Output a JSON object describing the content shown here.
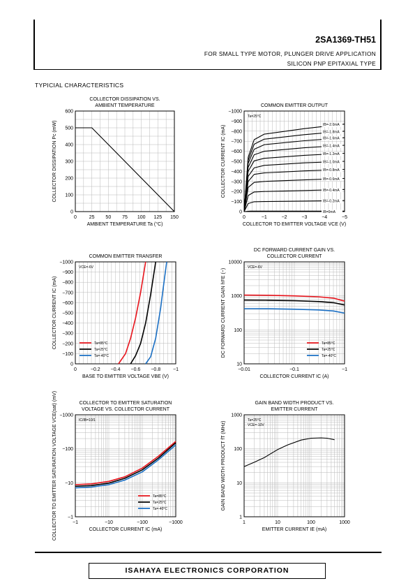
{
  "header": {
    "part_number": "2SA1369-TH51",
    "application": "FOR SMALL TYPE MOTOR, PLUNGER DRIVE APPLICATION",
    "type": "SILICON PNP EPITAXIAL TYPE"
  },
  "section_title": "TYPICIAL   CHARACTERISTICS",
  "footer": {
    "company": "ISAHAYA ELECTRONICS CORPORATION"
  },
  "chart_data": [
    {
      "type": "line",
      "title": [
        "COLLECTOR DISSIPATION VS.",
        "AMBIENT TEMPERATURE"
      ],
      "xlabel": "AMBIENT TEMPERATURE Ta (°C)",
      "ylabel": "COLLECTOR DISSIPATION Pc (mW)",
      "xlim": [
        0,
        150
      ],
      "ylim": [
        0,
        600
      ],
      "xticks": [
        0,
        25,
        50,
        75,
        100,
        125,
        150
      ],
      "yticks": [
        0,
        100,
        200,
        300,
        400,
        500,
        600
      ],
      "grid": true,
      "series": [
        {
          "color": "#000000",
          "x": [
            0,
            25,
            150
          ],
          "y": [
            500,
            500,
            0
          ]
        }
      ]
    },
    {
      "type": "line",
      "title": [
        "COMMON EMITTER OUTPUT"
      ],
      "xlabel": "COLLECTOR TO EMITTER VOLTAGE VCE (V)",
      "ylabel": "COLLECTOR CURRENT IC (mA)",
      "xlim": [
        0,
        -5
      ],
      "ylim": [
        0,
        -1000
      ],
      "xticks": [
        0,
        -1,
        -2,
        -3,
        -4,
        -5
      ],
      "yticks": [
        0,
        -100,
        -200,
        -300,
        -400,
        -500,
        -600,
        -700,
        -800,
        -900,
        -1000
      ],
      "grid": true,
      "annotations": [
        "Ta=25°C"
      ],
      "series": [
        {
          "name": "IB=0mA",
          "color": "#000000",
          "x": [
            0,
            -0.3,
            -1,
            -5
          ],
          "y": [
            0,
            -5,
            -5,
            -5
          ]
        },
        {
          "name": "IB=-0.2mA",
          "color": "#000000",
          "x": [
            0,
            -0.2,
            -0.5,
            -1,
            -3,
            -5
          ],
          "y": [
            0,
            -80,
            -98,
            -100,
            -105,
            -110
          ]
        },
        {
          "name": "IB=-0.4mA",
          "color": "#000000",
          "x": [
            0,
            -0.2,
            -0.5,
            -1,
            -3,
            -5
          ],
          "y": [
            0,
            -160,
            -195,
            -200,
            -210,
            -220
          ]
        },
        {
          "name": "IB=-0.6mA",
          "color": "#000000",
          "x": [
            0,
            -0.2,
            -0.5,
            -1,
            -3,
            -5
          ],
          "y": [
            0,
            -240,
            -290,
            -300,
            -315,
            -330
          ]
        },
        {
          "name": "IB=-0.8mA",
          "color": "#000000",
          "x": [
            0,
            -0.2,
            -0.5,
            -1,
            -3,
            -5
          ],
          "y": [
            0,
            -300,
            -370,
            -385,
            -405,
            -420
          ]
        },
        {
          "name": "IB=-1.0mA",
          "color": "#000000",
          "x": [
            0,
            -0.2,
            -0.5,
            -1,
            -3,
            -5
          ],
          "y": [
            0,
            -350,
            -435,
            -460,
            -485,
            -500
          ]
        },
        {
          "name": "IB=-1.2mA",
          "color": "#000000",
          "x": [
            0,
            -0.2,
            -0.5,
            -1,
            -3,
            -5
          ],
          "y": [
            0,
            -400,
            -505,
            -530,
            -560,
            -580
          ]
        },
        {
          "name": "IB=-1.4mA",
          "color": "#000000",
          "x": [
            0,
            -0.2,
            -0.5,
            -1,
            -3,
            -5
          ],
          "y": [
            0,
            -440,
            -565,
            -600,
            -635,
            -660
          ]
        },
        {
          "name": "IB=-1.6mA",
          "color": "#000000",
          "x": [
            0,
            -0.2,
            -0.5,
            -1,
            -3,
            -5
          ],
          "y": [
            0,
            -480,
            -620,
            -665,
            -705,
            -735
          ]
        },
        {
          "name": "IB=-1.8mA",
          "color": "#000000",
          "x": [
            0,
            -0.2,
            -0.5,
            -1,
            -3,
            -5
          ],
          "y": [
            0,
            -510,
            -670,
            -720,
            -765,
            -800
          ]
        },
        {
          "name": "IB=-2.0mA",
          "color": "#000000",
          "x": [
            0,
            -0.2,
            -0.5,
            -1,
            -3,
            -5
          ],
          "y": [
            0,
            -540,
            -715,
            -770,
            -825,
            -870
          ]
        }
      ]
    },
    {
      "type": "line",
      "title": [
        "COMMON EMITTER TRANSFER"
      ],
      "xlabel": "BASE TO EMITTER VOLTAGE VBE (V)",
      "ylabel": "COLLECTOR CURRENT IC (mA)",
      "xlim": [
        0,
        -1
      ],
      "ylim": [
        0,
        -1000
      ],
      "xticks": [
        0,
        -0.2,
        -0.4,
        -0.6,
        -0.8,
        -1
      ],
      "yticks": [
        0,
        -100,
        -200,
        -300,
        -400,
        -500,
        -600,
        -700,
        -800,
        -900,
        -1000
      ],
      "grid": true,
      "annotations": [
        "VCE=-6V"
      ],
      "legend_position": "bottom-left",
      "series": [
        {
          "name": "Ta=85°C",
          "color": "#e8141c",
          "x": [
            -0.43,
            -0.5,
            -0.55,
            -0.6,
            -0.65,
            -0.7
          ],
          "y": [
            0,
            -100,
            -250,
            -450,
            -700,
            -1000
          ]
        },
        {
          "name": "Ta=25°C",
          "color": "#000000",
          "x": [
            -0.55,
            -0.6,
            -0.65,
            -0.7,
            -0.75,
            -0.8
          ],
          "y": [
            0,
            -80,
            -200,
            -400,
            -680,
            -1000
          ]
        },
        {
          "name": "Ta=-40°C",
          "color": "#1a6fc4",
          "x": [
            -0.7,
            -0.75,
            -0.8,
            -0.85,
            -0.88,
            -0.91
          ],
          "y": [
            0,
            -70,
            -250,
            -550,
            -780,
            -1000
          ]
        }
      ]
    },
    {
      "type": "line",
      "title": [
        "DC FORWARD CURRENT GAIN VS.",
        "COLLECTOR CURRENT"
      ],
      "xlabel": "COLLECTOR CURRENT IC (A)",
      "ylabel": "DC FORWARD CURRENT GAIN hFE (−)",
      "xscale": "log",
      "yscale": "log",
      "xlim": [
        -0.01,
        -1
      ],
      "ylim": [
        10,
        10000
      ],
      "xticks": [
        -0.01,
        -0.1,
        -1
      ],
      "yticks": [
        10,
        100,
        1000,
        10000
      ],
      "grid": true,
      "annotations": [
        "VCE=-6V"
      ],
      "legend_position": "bottom-right",
      "series": [
        {
          "name": "Ta=85°C",
          "color": "#e8141c",
          "x": [
            0.01,
            0.03,
            0.1,
            0.3,
            0.6,
            1
          ],
          "y": [
            1050,
            1040,
            1000,
            940,
            860,
            700
          ]
        },
        {
          "name": "Ta=25°C",
          "color": "#000000",
          "x": [
            0.01,
            0.03,
            0.1,
            0.3,
            0.6,
            1
          ],
          "y": [
            750,
            745,
            720,
            680,
            630,
            540
          ]
        },
        {
          "name": "Ta=-40°C",
          "color": "#1a6fc4",
          "x": [
            0.01,
            0.03,
            0.1,
            0.3,
            0.6,
            1
          ],
          "y": [
            420,
            418,
            405,
            385,
            360,
            310
          ]
        }
      ]
    },
    {
      "type": "line",
      "title": [
        "COLLECTOR TO EMITTER SATURATION",
        "VOLTAGE VS. COLLECTOR CURRENT"
      ],
      "xlabel": "COLLECTOR CURRENT IC (mA)",
      "ylabel": "COLLECTOR TO EMITTER SATURATION VOLTAGE VCE(sat) (mV)",
      "xscale": "log",
      "yscale": "log",
      "xlim": [
        -1,
        -1000
      ],
      "ylim": [
        -1,
        -1000
      ],
      "xticks": [
        -1,
        -10,
        -100,
        -1000
      ],
      "yticks": [
        -1,
        -10,
        -100,
        -1000
      ],
      "grid": true,
      "annotations": [
        "IC/IB=10/1"
      ],
      "legend_position": "bottom-right",
      "series": [
        {
          "name": "Ta=85°C",
          "color": "#e8141c",
          "x": [
            1,
            3,
            10,
            30,
            100,
            300,
            1000
          ],
          "y": [
            8.8,
            9.3,
            11,
            15,
            27,
            60,
            165
          ]
        },
        {
          "name": "Ta=25°C",
          "color": "#000000",
          "x": [
            1,
            3,
            10,
            30,
            100,
            300,
            1000
          ],
          "y": [
            7.9,
            8.3,
            9.8,
            13.5,
            24,
            53,
            150
          ]
        },
        {
          "name": "Ta=-40°C",
          "color": "#1a6fc4",
          "x": [
            1,
            3,
            10,
            30,
            100,
            300,
            1000
          ],
          "y": [
            7.1,
            7.5,
            8.8,
            12,
            21,
            47,
            130
          ]
        }
      ]
    },
    {
      "type": "line",
      "title": [
        "GAIN BAND WIDTH PRODUCT VS.",
        "EMITTER CURRENT"
      ],
      "xlabel": "EMITTER CURRENT IE (mA)",
      "ylabel": "GAIN BAND WIDTH PRODUCT fT (MHz)",
      "xscale": "log",
      "yscale": "log",
      "xlim": [
        1,
        1000
      ],
      "ylim": [
        1,
        1000
      ],
      "xticks": [
        1,
        10,
        100,
        1000
      ],
      "yticks": [
        1,
        10,
        100,
        1000
      ],
      "grid": true,
      "annotations": [
        "Ta=25°C",
        "VCE=-10V"
      ],
      "series": [
        {
          "color": "#000000",
          "x": [
            1,
            2,
            4,
            10,
            20,
            50,
            100,
            200,
            300,
            500
          ],
          "y": [
            30,
            40,
            55,
            95,
            130,
            180,
            205,
            210,
            205,
            185
          ]
        }
      ]
    }
  ]
}
